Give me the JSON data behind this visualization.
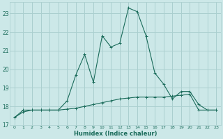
{
  "xlabel": "Humidex (Indice chaleur)",
  "bg_color": "#cce8e8",
  "grid_color": "#aacfcf",
  "line_color": "#1a6b5a",
  "xlim": [
    -0.5,
    23.5
  ],
  "ylim": [
    17.0,
    23.6
  ],
  "yticks": [
    17,
    18,
    19,
    20,
    21,
    22,
    23
  ],
  "xticks": [
    0,
    1,
    2,
    3,
    4,
    5,
    6,
    7,
    8,
    9,
    10,
    11,
    12,
    13,
    14,
    15,
    16,
    17,
    18,
    19,
    20,
    21,
    22,
    23
  ],
  "curve1_x": [
    0,
    1,
    2,
    3,
    4,
    5,
    6,
    7,
    8,
    9,
    10,
    11,
    12,
    13,
    14,
    15,
    16,
    17,
    18,
    19,
    20,
    21,
    22,
    23
  ],
  "curve1_y": [
    17.4,
    17.8,
    17.8,
    17.8,
    17.8,
    17.8,
    18.3,
    19.7,
    20.8,
    19.3,
    21.8,
    21.2,
    21.4,
    23.3,
    23.1,
    21.8,
    19.8,
    19.2,
    18.4,
    18.8,
    18.8,
    18.1,
    17.8,
    17.8
  ],
  "curve2_x": [
    0,
    1,
    2,
    3,
    4,
    5,
    6,
    7,
    8,
    9,
    10,
    11,
    12,
    13,
    14,
    15,
    16,
    17,
    18,
    19,
    20,
    21,
    22,
    23
  ],
  "curve2_y": [
    17.4,
    17.7,
    17.8,
    17.8,
    17.8,
    17.8,
    17.85,
    17.9,
    18.0,
    18.1,
    18.2,
    18.3,
    18.4,
    18.45,
    18.5,
    18.5,
    18.5,
    18.5,
    18.55,
    18.6,
    18.65,
    17.8,
    17.8,
    17.8
  ]
}
